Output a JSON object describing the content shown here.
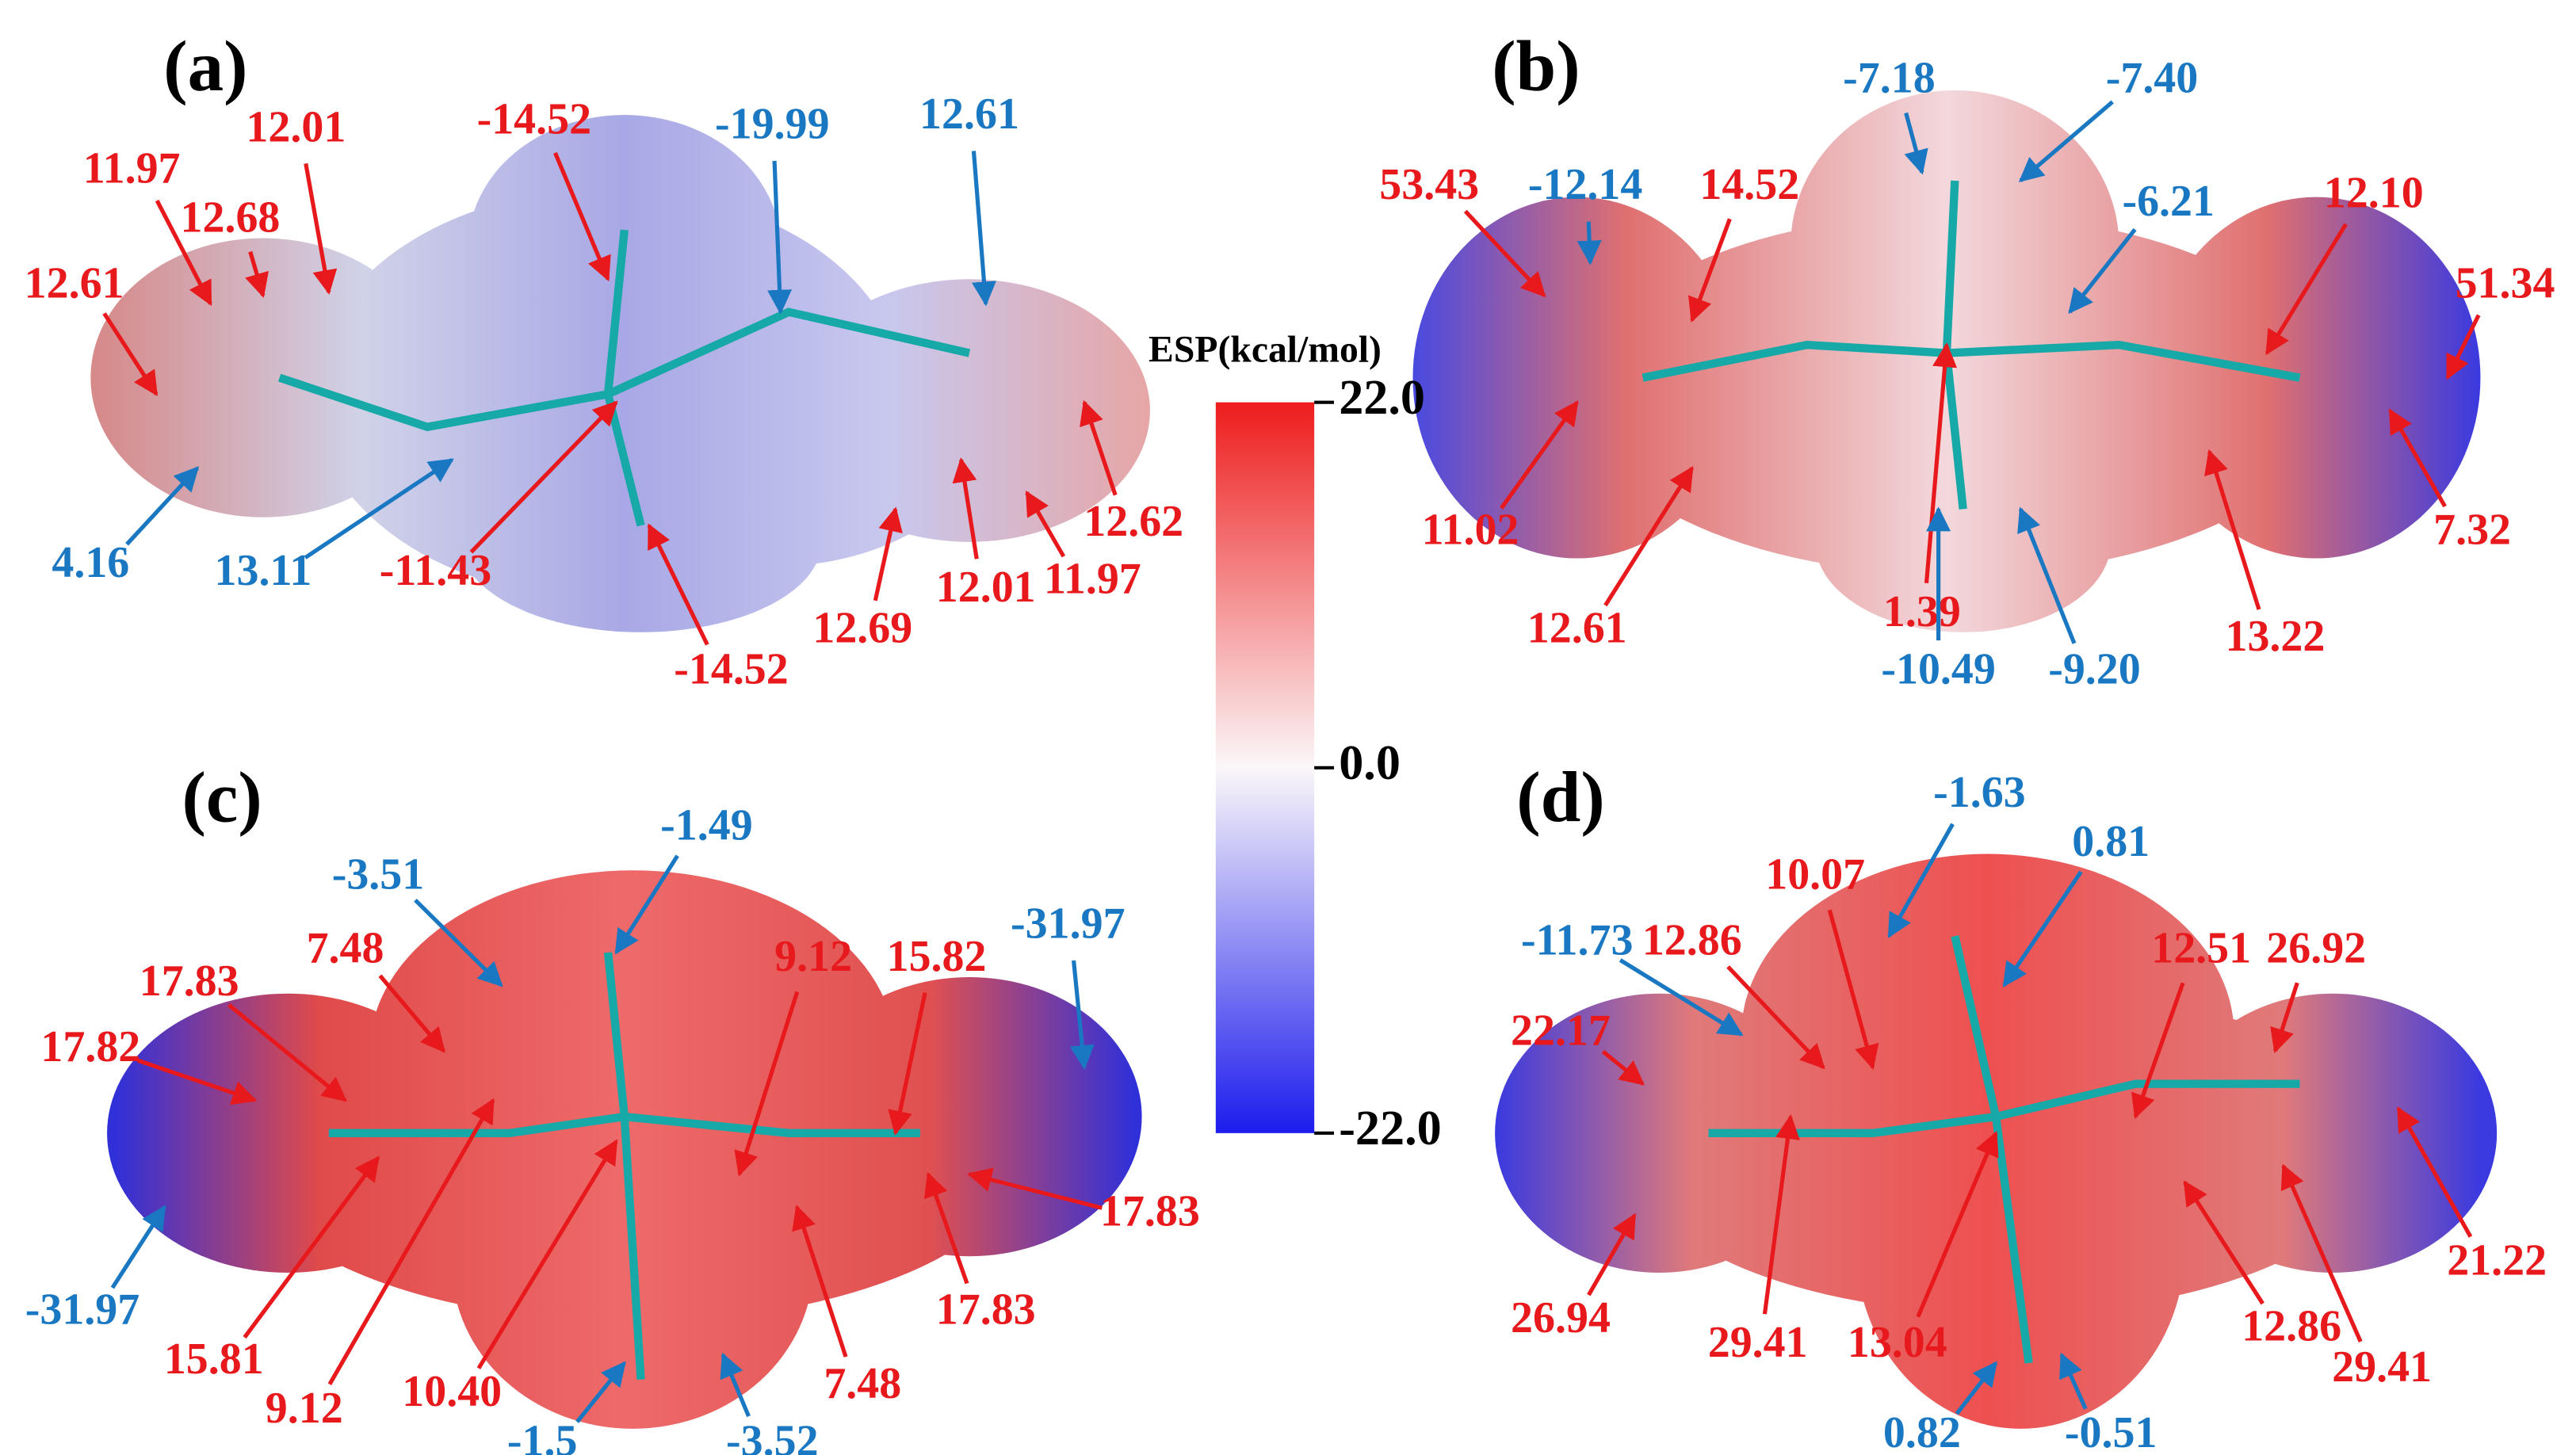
{
  "panels": [
    {
      "tag": "(a)",
      "labels": [
        {
          "text": "12.61",
          "color": "#1a78c2"
        },
        {
          "text": "-19.99",
          "color": "#1a78c2"
        },
        {
          "text": "-14.52",
          "color": "#e8191c"
        },
        {
          "text": "12.01",
          "color": "#e8191c"
        },
        {
          "text": "11.97",
          "color": "#e8191c"
        },
        {
          "text": "12.68",
          "color": "#e8191c"
        },
        {
          "text": "12.61",
          "color": "#e8191c"
        },
        {
          "text": "4.16",
          "color": "#1a78c2"
        },
        {
          "text": "13.11",
          "color": "#1a78c2"
        },
        {
          "text": "-11.43",
          "color": "#e8191c"
        },
        {
          "text": "-14.52",
          "color": "#e8191c"
        },
        {
          "text": "12.69",
          "color": "#e8191c"
        },
        {
          "text": "12.01",
          "color": "#e8191c"
        },
        {
          "text": "11.97",
          "color": "#e8191c"
        },
        {
          "text": "12.62",
          "color": "#e8191c"
        }
      ]
    },
    {
      "tag": "(b)",
      "labels": [
        {
          "text": "-7.18",
          "color": "#1a78c2"
        },
        {
          "text": "-7.40",
          "color": "#1a78c2"
        },
        {
          "text": "53.43",
          "color": "#e8191c"
        },
        {
          "text": "-12.14",
          "color": "#1a78c2"
        },
        {
          "text": "14.52",
          "color": "#e8191c"
        },
        {
          "text": "-6.21",
          "color": "#1a78c2"
        },
        {
          "text": "12.10",
          "color": "#e8191c"
        },
        {
          "text": "51.34",
          "color": "#e8191c"
        },
        {
          "text": "11.02",
          "color": "#e8191c"
        },
        {
          "text": "12.61",
          "color": "#e8191c"
        },
        {
          "text": "1.39",
          "color": "#e8191c"
        },
        {
          "text": "-10.49",
          "color": "#1a78c2"
        },
        {
          "text": "-9.20",
          "color": "#1a78c2"
        },
        {
          "text": "13.22",
          "color": "#e8191c"
        },
        {
          "text": "7.32",
          "color": "#e8191c"
        }
      ]
    },
    {
      "tag": "(c)",
      "labels": [
        {
          "text": "-1.49",
          "color": "#1a78c2"
        },
        {
          "text": "-3.51",
          "color": "#1a78c2"
        },
        {
          "text": "7.48",
          "color": "#e8191c"
        },
        {
          "text": "17.83",
          "color": "#e8191c"
        },
        {
          "text": "17.82",
          "color": "#e8191c"
        },
        {
          "text": "9.12",
          "color": "#e8191c"
        },
        {
          "text": "15.82",
          "color": "#e8191c"
        },
        {
          "text": "-31.97",
          "color": "#1a78c2"
        },
        {
          "text": "-31.97",
          "color": "#1a78c2"
        },
        {
          "text": "15.81",
          "color": "#e8191c"
        },
        {
          "text": "9.12",
          "color": "#e8191c"
        },
        {
          "text": "10.40",
          "color": "#e8191c"
        },
        {
          "text": "-1.5",
          "color": "#1a78c2"
        },
        {
          "text": "-3.52",
          "color": "#1a78c2"
        },
        {
          "text": "7.48",
          "color": "#e8191c"
        },
        {
          "text": "17.83",
          "color": "#e8191c"
        },
        {
          "text": "17.83",
          "color": "#e8191c"
        }
      ]
    },
    {
      "tag": "(d)",
      "labels": [
        {
          "text": "-1.63",
          "color": "#1a78c2"
        },
        {
          "text": "0.81",
          "color": "#1a78c2"
        },
        {
          "text": "10.07",
          "color": "#e8191c"
        },
        {
          "text": "12.86",
          "color": "#e8191c"
        },
        {
          "text": "-11.73",
          "color": "#1a78c2"
        },
        {
          "text": "12.51",
          "color": "#e8191c"
        },
        {
          "text": "26.92",
          "color": "#e8191c"
        },
        {
          "text": "22.17",
          "color": "#e8191c"
        },
        {
          "text": "26.94",
          "color": "#e8191c"
        },
        {
          "text": "29.41",
          "color": "#e8191c"
        },
        {
          "text": "13.04",
          "color": "#e8191c"
        },
        {
          "text": "0.82",
          "color": "#1a78c2"
        },
        {
          "text": "-0.51",
          "color": "#1a78c2"
        },
        {
          "text": "12.86",
          "color": "#e8191c"
        },
        {
          "text": "29.41",
          "color": "#e8191c"
        },
        {
          "text": "21.22",
          "color": "#e8191c"
        }
      ]
    }
  ],
  "colorbar": {
    "title": "ESP(kcal/mol)",
    "range": [
      -22,
      22
    ],
    "ticks": [
      {
        "value": 22,
        "label": "22.0"
      },
      {
        "value": 0,
        "label": "0.0"
      },
      {
        "value": -22,
        "label": "-22.0"
      }
    ]
  }
}
